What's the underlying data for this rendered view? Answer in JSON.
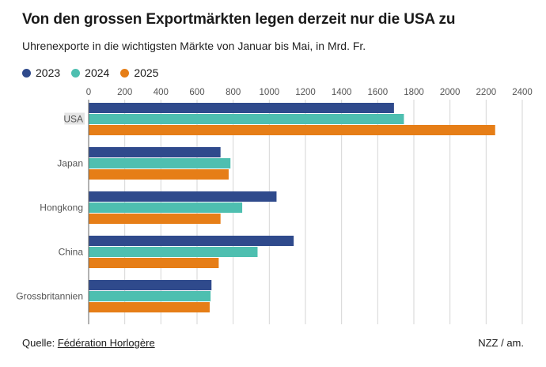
{
  "title": "Von den grossen Exportmärkten legen derzeit nur die USA zu",
  "subtitle": "Uhrenexporte in die wichtigsten Märkte von Januar bis Mai, in Mrd. Fr.",
  "legend": [
    {
      "label": "2023",
      "color": "#2f4a8c"
    },
    {
      "label": "2024",
      "color": "#4ebfb0"
    },
    {
      "label": "2025",
      "color": "#e67e17"
    }
  ],
  "footer": {
    "source_prefix": "Quelle:",
    "source_link": "Fédération Horlogère",
    "credit": "NZZ / am."
  },
  "chart_data": {
    "type": "bar",
    "orientation": "horizontal",
    "categories": [
      "USA",
      "Japan",
      "Hongkong",
      "China",
      "Grossbritannien"
    ],
    "highlighted_category": "USA",
    "series": [
      {
        "name": "2023",
        "color": "#2f4a8c",
        "values": [
          1690,
          730,
          1040,
          1135,
          680
        ]
      },
      {
        "name": "2024",
        "color": "#4ebfb0",
        "values": [
          1745,
          785,
          850,
          935,
          675
        ]
      },
      {
        "name": "2025",
        "color": "#e67e17",
        "values": [
          2250,
          775,
          730,
          720,
          670
        ]
      }
    ],
    "xticks": [
      "0",
      "200",
      "400",
      "600",
      "800",
      "1000",
      "1200",
      "1400",
      "1600",
      "1800",
      "2000",
      "2200",
      "2400"
    ],
    "xlim": [
      0,
      2400
    ],
    "grid": true,
    "legend_position": "top-left"
  }
}
